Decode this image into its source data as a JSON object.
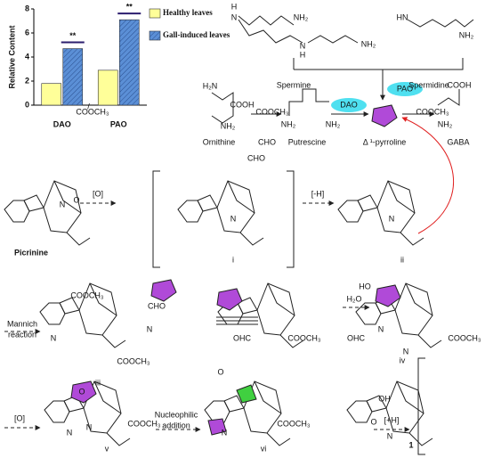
{
  "chart_data": {
    "type": "bar",
    "y_label": "Relative Content",
    "categories": [
      "DAO",
      "PAO"
    ],
    "series": [
      {
        "name": "Healthy leaves",
        "color": "#ffff99",
        "values": [
          1.8,
          2.9
        ]
      },
      {
        "name": "Gall-induced leaves",
        "color": "#5b8fd6",
        "values": [
          4.7,
          7.1
        ]
      }
    ],
    "annotations": [
      "**",
      "**"
    ],
    "ylim": [
      0,
      8
    ],
    "yticks": [
      0,
      2,
      4,
      6,
      8
    ],
    "legend": "top-right",
    "hatch": true
  },
  "diagram": {
    "labels": [
      "Spermine",
      "Spermidine",
      "Ornithine",
      "Putrescine",
      "Δ ¹-pyrroline",
      "GABA",
      "DAO",
      "PAO",
      "Picrinine",
      "[O]",
      "[-H]",
      "i",
      "ii",
      "Mannich",
      "reaction",
      "iii",
      "iv",
      "H₂O",
      "[O]",
      "Nucleophilic",
      "addition",
      "v",
      "vi",
      "[+H]",
      "1"
    ],
    "atoms": [
      "H₂N",
      "COOH",
      "NH₂",
      "NH₂",
      "NH₂",
      "COOH",
      "NH₂",
      "H",
      "N",
      "NH₂",
      "N",
      "H",
      "NH₂",
      "HN",
      "NH₂",
      "COOCH₃",
      "COOCH₃",
      "COOCH₃",
      "CHO",
      "CHO",
      "N",
      "N",
      "N",
      "O",
      "COOCH₃",
      "CHO",
      "N",
      "N",
      "OHC",
      "COOCH₃",
      "HO",
      "N",
      "OHC",
      "COOCH₃",
      "N",
      "COOCH₃",
      "N",
      "N",
      "O",
      "COOCH₃",
      "O",
      "OH",
      "N",
      "COOCH₃",
      "N",
      "O"
    ]
  }
}
